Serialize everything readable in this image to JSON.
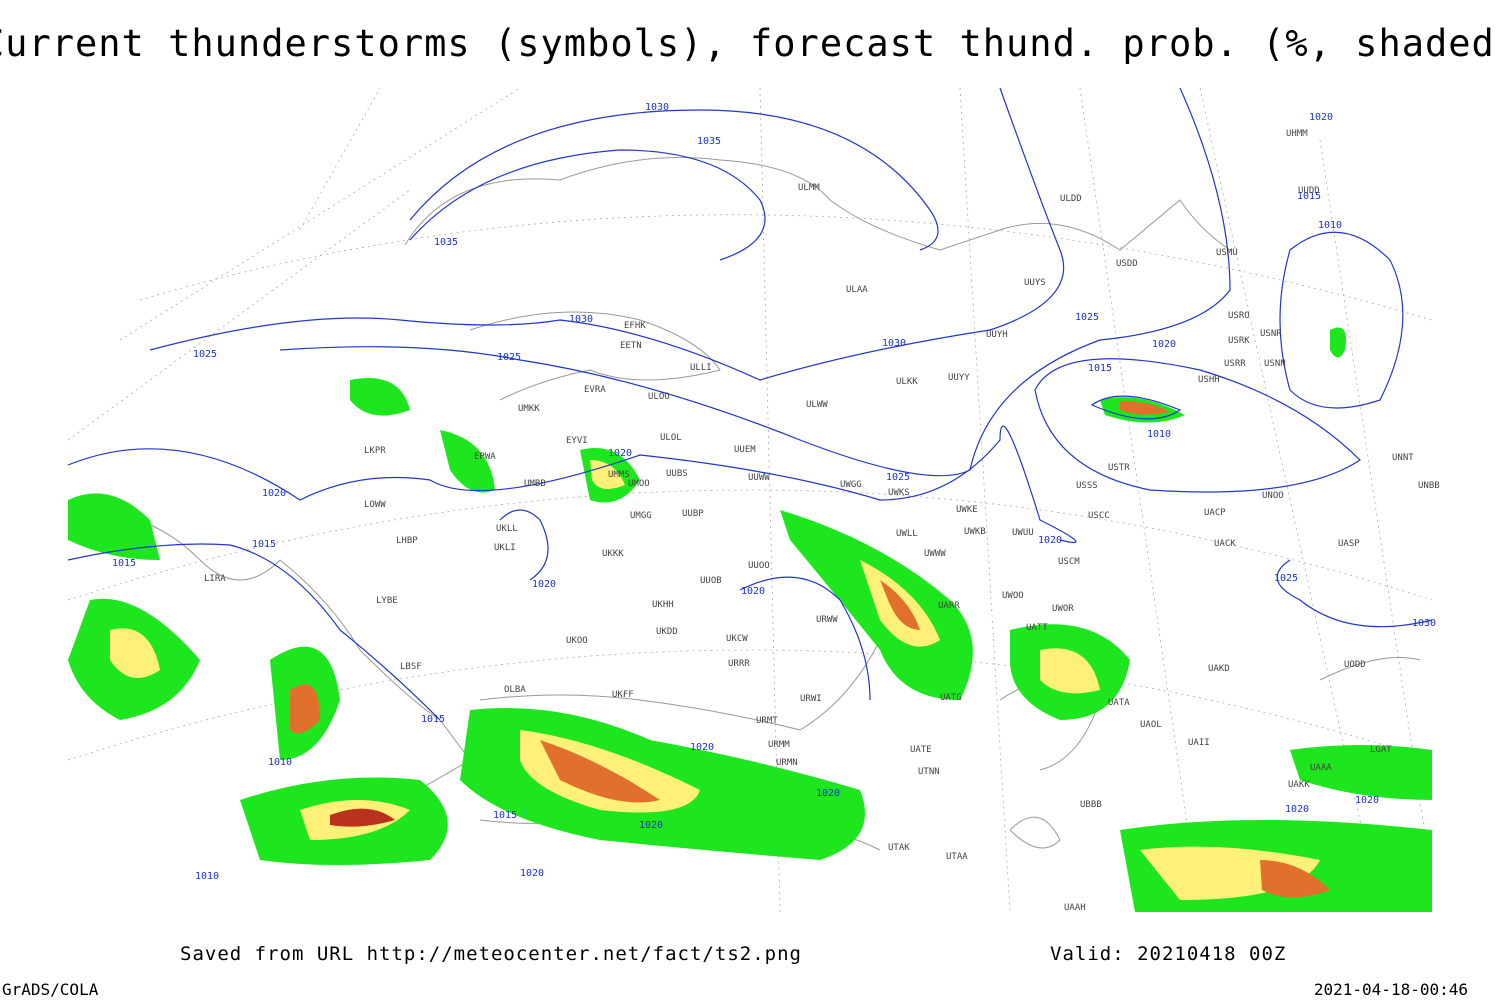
{
  "header": {
    "title": "Current thunderstorms (symbols), forecast thund. prob. (%, shaded)"
  },
  "footer": {
    "saved_from": "Saved from URL http://meteocenter.net/fact/ts2.png",
    "valid": "Valid: 20210418 00Z",
    "credit": "GrADS/COLA",
    "timestamp": "2021-04-18-00:46"
  },
  "isobar_labels": [
    1030,
    1035,
    1035,
    1030,
    1025,
    1025,
    1030,
    1025,
    1020,
    1020,
    1015,
    1010,
    1010,
    1015,
    1020,
    1025,
    1020,
    1015,
    1015,
    1020,
    1020,
    1015,
    1010,
    1015,
    1020,
    1020,
    1020,
    1020,
    1020,
    1025,
    1030,
    1020,
    1020,
    1010
  ],
  "stations": [
    "ULMM",
    "ULDD",
    "USDD",
    "USMU",
    "ULAA",
    "UUYS",
    "EFHK",
    "EETN",
    "ULLI",
    "UUYH",
    "USRO",
    "USRK",
    "USNR",
    "USHH",
    "USRR",
    "USNN",
    "ULKK",
    "UUYY",
    "EVRA",
    "ULOO",
    "UMKK",
    "ULWW",
    "EYVI",
    "ULOL",
    "UUEM",
    "EPWA",
    "LKPR",
    "UUBS",
    "UUWW",
    "UWGG",
    "UWKS",
    "USTR",
    "UNNT",
    "UMBB",
    "UMMS",
    "UMOO",
    "USSS",
    "UNOO",
    "UNBB",
    "LOWW",
    "UMGG",
    "UUBP",
    "UWKE",
    "UACP",
    "USCC",
    "UKLL",
    "UWLL",
    "UWKB",
    "UWUU",
    "UACK",
    "UASP",
    "LHBP",
    "UKLI",
    "UWWW",
    "USCM",
    "UUOO",
    "UKKK",
    "LIRA",
    "LYBE",
    "UUOB",
    "UKHH",
    "UKDD",
    "UKOO",
    "UWOO",
    "UWOR",
    "UATT",
    "UARR",
    "URWW",
    "UKCW",
    "URRR",
    "LBSF",
    "UAKD",
    "URWI",
    "URMT",
    "URMM",
    "URMN",
    "UATA",
    "UAOL",
    "UATE",
    "UTNN",
    "UBBB",
    "UTAK",
    "UTAA",
    "UAAH",
    "UODD",
    "UHMM",
    "LGAT",
    "OLBA",
    "UUDD",
    "UATG",
    "UKFF",
    "UAAA",
    "UAKK",
    "UAII"
  ]
}
